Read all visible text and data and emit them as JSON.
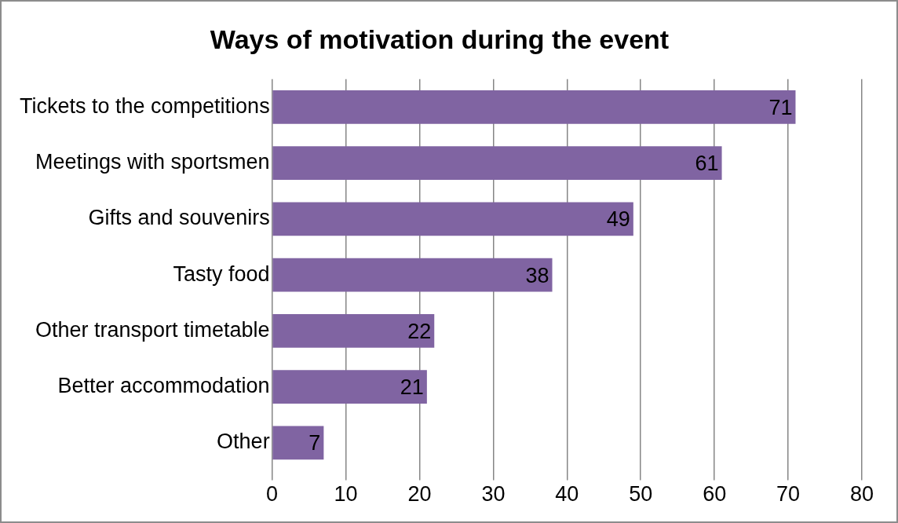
{
  "chart_data": {
    "type": "bar",
    "orientation": "horizontal",
    "title": "Ways of motivation during the event",
    "categories": [
      "Tickets to the competitions",
      "Meetings with sportsmen",
      "Gifts and souvenirs",
      "Tasty food",
      "Other transport timetable",
      "Better accommodation",
      "Other"
    ],
    "values": [
      71,
      61,
      49,
      38,
      22,
      21,
      7
    ],
    "color": "#8064a2",
    "xlim": [
      0,
      80
    ],
    "xticks": [
      0,
      10,
      20,
      30,
      40,
      50,
      60,
      70,
      80
    ],
    "grid": "x",
    "data_labels": true,
    "legend": false
  }
}
